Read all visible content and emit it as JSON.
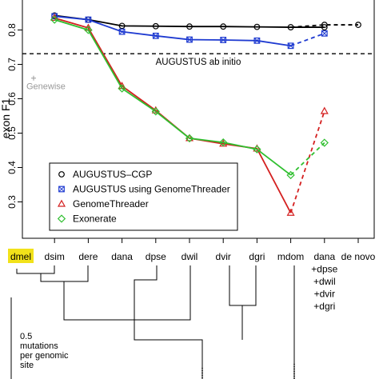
{
  "chart_data": {
    "type": "line",
    "title": "",
    "xlabel": "",
    "ylabel": "exon F1",
    "ylim": [
      0.2,
      0.85
    ],
    "yticks": [
      "0.3",
      "0.4",
      "0.5",
      "0.6",
      "0.7",
      "0.8"
    ],
    "yticks_values": [
      0.3,
      0.4,
      0.5,
      0.6,
      0.7,
      0.8
    ],
    "categories": [
      "dmel",
      "dsim",
      "dere",
      "dana",
      "dpse",
      "dwil",
      "dvir",
      "dgri",
      "mdom",
      "dana\n+dpse\n+dwil\n+dvir\n+dgri",
      "de novo"
    ],
    "category_lines": [
      [
        "dmel"
      ],
      [
        "dsim"
      ],
      [
        "dere"
      ],
      [
        "dana"
      ],
      [
        "dpse"
      ],
      [
        "dwil"
      ],
      [
        "dvir"
      ],
      [
        "dgri"
      ],
      [
        "mdom"
      ],
      [
        "dana",
        "+dpse",
        "+dwil",
        "+dvir",
        "+dgri"
      ],
      [
        "de novo"
      ]
    ],
    "highlight_category": "dmel",
    "grid": false,
    "legend_position": "bottom-left",
    "series": [
      {
        "name": "AUGUSTUS–CGP",
        "color": "#000000",
        "marker": "circle",
        "solid_x": [
          1,
          2,
          3,
          4,
          5,
          6,
          7,
          8,
          9
        ],
        "solid_y": [
          0.842,
          0.83,
          0.812,
          0.811,
          0.81,
          0.81,
          0.809,
          0.808,
          0.808
        ],
        "dashed_x": [
          8,
          9,
          10
        ],
        "dashed_y": [
          0.808,
          0.815,
          0.815
        ]
      },
      {
        "name": "AUGUSTUS using GenomeThreader",
        "color": "#1f3bd1",
        "marker": "square",
        "solid_x": [
          1,
          2,
          3,
          4,
          5,
          6,
          7,
          8
        ],
        "solid_y": [
          0.84,
          0.83,
          0.795,
          0.783,
          0.772,
          0.771,
          0.769,
          0.754
        ],
        "dashed_x": [
          8,
          9
        ],
        "dashed_y": [
          0.754,
          0.79
        ]
      },
      {
        "name": "GenomeThreader",
        "color": "#d42020",
        "marker": "triangle",
        "solid_x": [
          1,
          2,
          3,
          4,
          5,
          6,
          7,
          8
        ],
        "solid_y": [
          0.835,
          0.806,
          0.637,
          0.566,
          0.485,
          0.469,
          0.455,
          0.268
        ],
        "dashed_x": [
          8,
          9
        ],
        "dashed_y": [
          0.268,
          0.564
        ]
      },
      {
        "name": "Exonerate",
        "color": "#2fbf2f",
        "marker": "diamond",
        "solid_x": [
          1,
          2,
          3,
          4,
          5,
          6,
          7,
          8
        ],
        "solid_y": [
          0.83,
          0.8,
          0.63,
          0.563,
          0.485,
          0.473,
          0.453,
          0.378
        ],
        "dashed_x": [
          8,
          9
        ],
        "dashed_y": [
          0.378,
          0.472
        ]
      }
    ],
    "reference_lines": [
      {
        "label": "AUGUSTUS ab initio",
        "y": 0.731,
        "color": "#000000"
      }
    ],
    "points": [
      {
        "label": "Genewise",
        "x": -0.1,
        "y": 0.66,
        "color": "#999999"
      }
    ],
    "tree_scale_label": [
      "0.5",
      "mutations",
      "per genomic",
      "site"
    ]
  }
}
